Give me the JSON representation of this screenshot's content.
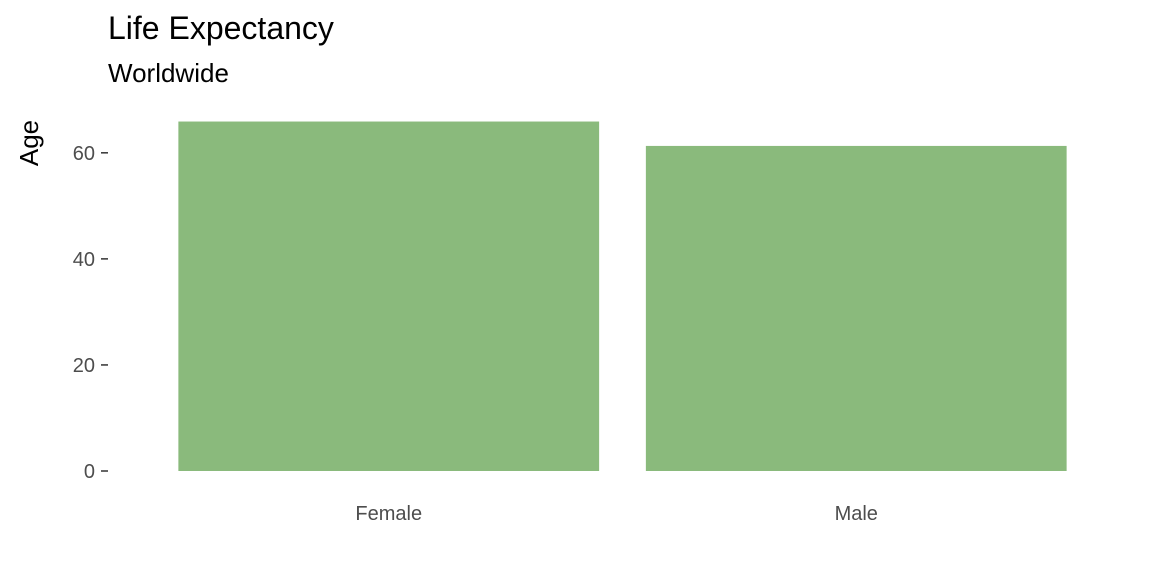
{
  "chart_data": {
    "type": "bar",
    "title": "Life Expectancy",
    "subtitle": "Worldwide",
    "xlabel": "",
    "ylabel": "Age",
    "categories": [
      "Female",
      "Male"
    ],
    "values": [
      65.9,
      61.3
    ],
    "yticks": [
      0,
      20,
      40,
      60
    ],
    "ylim": [
      0,
      66
    ],
    "bar_color": "#8aba7c",
    "grid": false,
    "legend": "none"
  }
}
